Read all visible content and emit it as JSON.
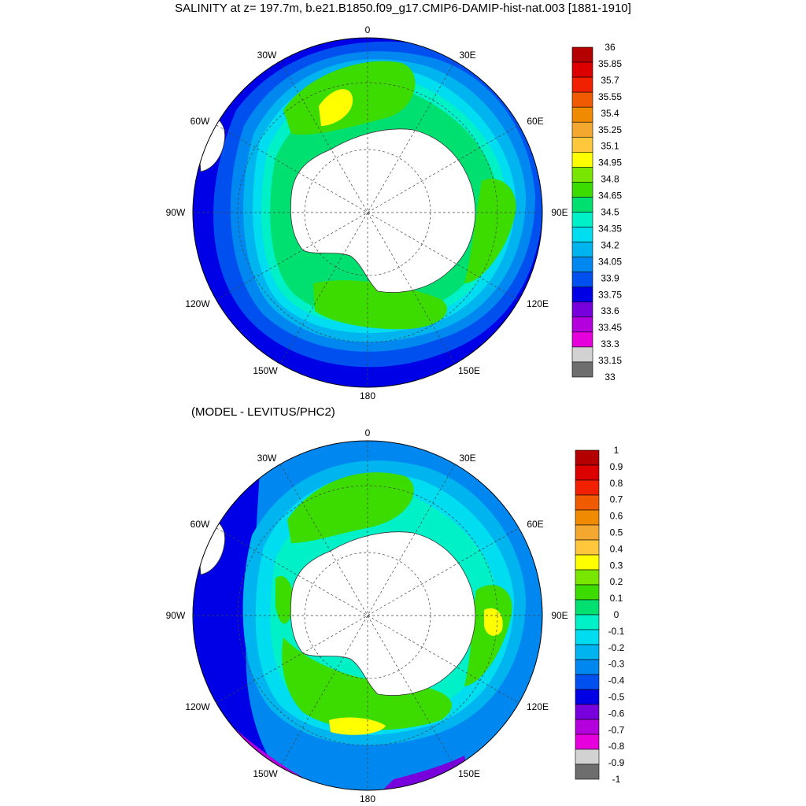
{
  "title": "SALINITY at z= 197.7m, b.e21.B1850.f09_g17.CMIP6-DAMIP-hist-nat.003 [1881-1910]",
  "subtitle": "(MODEL - LEVITUS/PHC2)",
  "lon_labels": {
    "top": "0",
    "n30e": "30E",
    "n60e": "60E",
    "e90": "90E",
    "s120e": "120E",
    "s150e": "150E",
    "bottom": "180",
    "s150w": "150W",
    "s120w": "120W",
    "w90": "90W",
    "n60w": "60W",
    "n30w": "30W"
  },
  "colorbar_top": {
    "labels": [
      "36",
      "35.85",
      "35.7",
      "35.55",
      "35.4",
      "35.25",
      "35.1",
      "34.95",
      "34.8",
      "34.65",
      "34.5",
      "34.35",
      "34.2",
      "34.05",
      "33.9",
      "33.75",
      "33.6",
      "33.45",
      "33.3",
      "33.15",
      "33"
    ],
    "colors": [
      "#b40000",
      "#dc0000",
      "#f02000",
      "#f05a00",
      "#f08a00",
      "#f5a830",
      "#ffc83c",
      "#ffff00",
      "#78e600",
      "#3cdc00",
      "#00e070",
      "#00f0c8",
      "#00dcf0",
      "#00b4f0",
      "#0088f0",
      "#0050f0",
      "#0000e6",
      "#7800dc",
      "#b400dc",
      "#e600dc",
      "#d2d2d2",
      "#6e6e6e"
    ]
  },
  "colorbar_bottom": {
    "labels": [
      "1",
      "0.9",
      "0.8",
      "0.7",
      "0.6",
      "0.5",
      "0.4",
      "0.3",
      "0.2",
      "0.1",
      "0",
      "-0.1",
      "-0.2",
      "-0.3",
      "-0.4",
      "-0.5",
      "-0.6",
      "-0.7",
      "-0.8",
      "-0.9",
      "-1"
    ],
    "colors": [
      "#b40000",
      "#dc0000",
      "#f02000",
      "#f05a00",
      "#f08a00",
      "#f5a830",
      "#ffc83c",
      "#ffff00",
      "#78e600",
      "#3cdc00",
      "#00e070",
      "#00f0c8",
      "#00dcf0",
      "#00b4f0",
      "#0088f0",
      "#0050f0",
      "#0000e6",
      "#7800dc",
      "#b400dc",
      "#e600dc",
      "#d2d2d2",
      "#6e6e6e"
    ]
  }
}
